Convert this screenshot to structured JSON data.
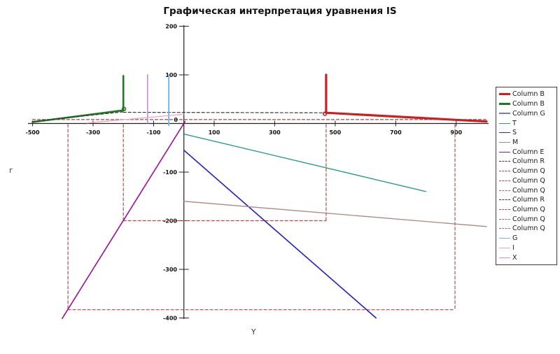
{
  "chart_data": {
    "type": "line",
    "title": "Графическая интерпретация уравнения IS",
    "xlabel": "Y",
    "ylabel": "г",
    "origin_label": "0",
    "xlim": [
      -515,
      1010
    ],
    "ylim": [
      -400,
      200
    ],
    "x_ticks": [
      -500,
      -300,
      -100,
      100,
      300,
      500,
      700,
      900
    ],
    "y_ticks": [
      200,
      100,
      -100,
      -200,
      -300,
      -400
    ],
    "grid": false,
    "legend_position": "right",
    "series": [
      {
        "name": "Column Q",
        "color": "#a34545",
        "width": 1.2,
        "dash": true,
        "points": [
          [
            -500,
            8
          ],
          [
            1000,
            8
          ]
        ]
      },
      {
        "name": "Column Q",
        "color": "#b55c5c",
        "width": 1.3,
        "dash": true,
        "points": [
          [
            -383,
            -2
          ],
          [
            -383,
            -383
          ]
        ]
      },
      {
        "name": "Column Q",
        "color": "#b04848",
        "width": 1.2,
        "dash": true,
        "points": [
          [
            -383,
            -383
          ],
          [
            896,
            -383
          ]
        ]
      },
      {
        "name": "Column Q",
        "color": "#b55c5c",
        "width": 1.3,
        "dash": true,
        "points": [
          [
            896,
            -2
          ],
          [
            896,
            -383
          ]
        ]
      },
      {
        "name": "Column Q",
        "color": "#b55c5c",
        "width": 1.3,
        "dash": true,
        "points": [
          [
            -200,
            -2
          ],
          [
            -200,
            -200
          ]
        ]
      },
      {
        "name": "Column Q",
        "color": "#b04848",
        "width": 1.2,
        "dash": true,
        "points": [
          [
            -200,
            -200
          ],
          [
            470,
            -200
          ]
        ]
      },
      {
        "name": "Column Q",
        "color": "#b55c5c",
        "width": 1.3,
        "dash": true,
        "points": [
          [
            470,
            -2
          ],
          [
            470,
            -200
          ]
        ]
      },
      {
        "name": "Column B",
        "color": "#1f7a1f",
        "width": 2.6,
        "dash": false,
        "points": [
          [
            -500,
            3
          ],
          [
            -200,
            27
          ],
          [
            -200,
            98
          ]
        ],
        "knot": [
          -198,
          30
        ]
      },
      {
        "name": "Column R",
        "color": "#383838",
        "width": 1.2,
        "dash": true,
        "points": [
          [
            -500,
            4
          ],
          [
            -200,
            24
          ]
        ]
      },
      {
        "name": "Column R",
        "color": "#383838",
        "width": 1.2,
        "dash": true,
        "points": [
          [
            -200,
            23
          ],
          [
            470,
            22
          ]
        ]
      },
      {
        "name": "X",
        "color": "#c78fe2",
        "width": 1.7,
        "dash": false,
        "points": [
          [
            -120,
            100
          ],
          [
            -120,
            1
          ]
        ]
      },
      {
        "name": "G",
        "color": "#82b4e4",
        "width": 2.0,
        "dash": false,
        "points": [
          [
            -50,
            100
          ],
          [
            -50,
            -4
          ]
        ]
      },
      {
        "name": "I",
        "color": "#eda6c4",
        "width": 1.3,
        "dash": false,
        "points": [
          [
            -320,
            1
          ],
          [
            0,
            19
          ]
        ]
      },
      {
        "name": "Column E",
        "color": "#990f99",
        "width": 1.6,
        "dash": false,
        "points": [
          [
            -402,
            -401
          ],
          [
            4,
            4
          ]
        ]
      },
      {
        "name": "T",
        "color": "#2a9d8f",
        "width": 1.4,
        "dash": false,
        "points": [
          [
            2,
            -22
          ],
          [
            800,
            -140
          ]
        ]
      },
      {
        "name": "Column G",
        "color": "#7878cc",
        "width": 1.4,
        "dash": false,
        "points": [
          [
            0,
            -55
          ],
          [
            635,
            -400
          ]
        ]
      },
      {
        "name": "S",
        "color": "#2525c8",
        "width": 1.6,
        "dash": false,
        "points": [
          [
            0,
            -55
          ],
          [
            635,
            -400
          ]
        ]
      },
      {
        "name": "M",
        "color": "#b08585",
        "width": 1.3,
        "dash": false,
        "points": [
          [
            0,
            -160
          ],
          [
            1000,
            -212
          ]
        ]
      },
      {
        "name": "Column B",
        "color": "#cc2020",
        "width": 3.2,
        "dash": false,
        "points": [
          [
            470,
            100
          ],
          [
            470,
            22
          ],
          [
            1000,
            4
          ]
        ],
        "knot": [
          466,
          20
        ]
      }
    ],
    "legend": [
      {
        "label": "Column B",
        "color": "#cc2020",
        "width": 3,
        "dash": false
      },
      {
        "label": "Column B",
        "color": "#1f7a1f",
        "width": 3,
        "dash": false
      },
      {
        "label": "Column G",
        "color": "#7878cc",
        "width": 2,
        "dash": false
      },
      {
        "label": "T",
        "color": "#2a9d8f",
        "width": 1.2,
        "dash": false
      },
      {
        "label": "S",
        "color": "#2525c8",
        "width": 1.2,
        "dash": false
      },
      {
        "label": "M",
        "color": "#b08585",
        "width": 1.2,
        "dash": false
      },
      {
        "label": "Column E",
        "color": "#990f99",
        "width": 1.2,
        "dash": false
      },
      {
        "label": "Column R",
        "color": "#383838",
        "width": 1.2,
        "dash": true
      },
      {
        "label": "Column Q",
        "color": "#a34545",
        "width": 1.2,
        "dash": true
      },
      {
        "label": "Column Q",
        "color": "#b04848",
        "width": 1.2,
        "dash": true
      },
      {
        "label": "Column Q",
        "color": "#b55c5c",
        "width": 1.2,
        "dash": true
      },
      {
        "label": "Column R",
        "color": "#383838",
        "width": 1.2,
        "dash": true
      },
      {
        "label": "Column Q",
        "color": "#b04848",
        "width": 1.2,
        "dash": true
      },
      {
        "label": "Column Q",
        "color": "#b55c5c",
        "width": 1.2,
        "dash": true
      },
      {
        "label": "Column Q",
        "color": "#b55c5c",
        "width": 1.2,
        "dash": true
      },
      {
        "label": "G",
        "color": "#82b4e4",
        "width": 1.2,
        "dash": false
      },
      {
        "label": "I",
        "color": "#eda6c4",
        "width": 1.2,
        "dash": false
      },
      {
        "label": "X",
        "color": "#c78fe2",
        "width": 1.2,
        "dash": false
      }
    ]
  }
}
